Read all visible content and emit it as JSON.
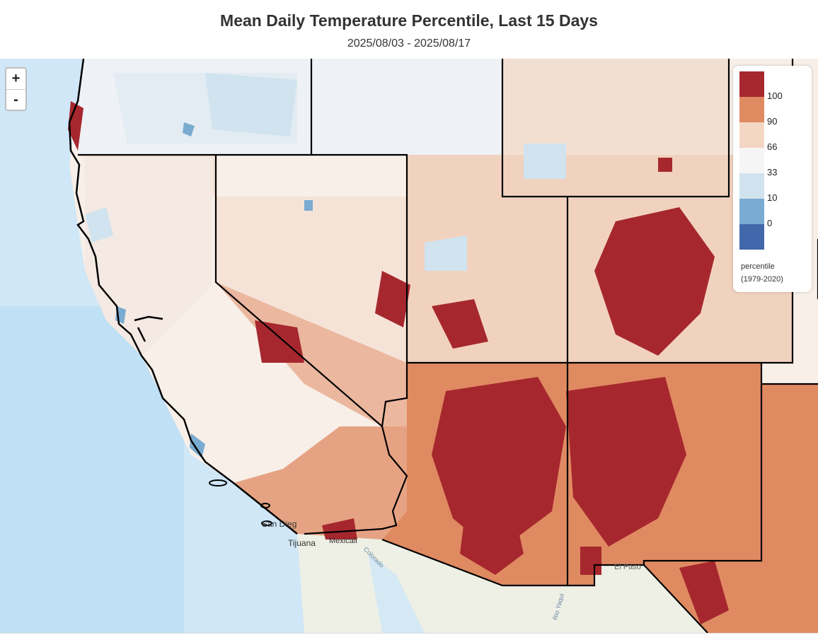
{
  "title": "Mean Daily Temperature Percentile, Last 15 Days",
  "subtitle": "2025/08/03 - 2025/08/17",
  "zoom": {
    "in_label": "+",
    "out_label": "-"
  },
  "legend": {
    "ticks": [
      "100",
      "90",
      "66",
      "33",
      "10",
      "0"
    ],
    "colors": [
      "#a6282e",
      "#e08a62",
      "#f4d6c4",
      "#f5f5f5",
      "#d0e3ef",
      "#7aabd0",
      "#4168ab"
    ],
    "footer_line1": "percentile",
    "footer_line2": "(1979-2020)"
  },
  "places": {
    "san_diego": "San Dieg",
    "tijuana": "Tijuana",
    "mexicali": "Mexicali",
    "colorado": "Colorado",
    "el_paso": "El Paso",
    "rio_yaqui": "Rio Yaqui"
  }
}
